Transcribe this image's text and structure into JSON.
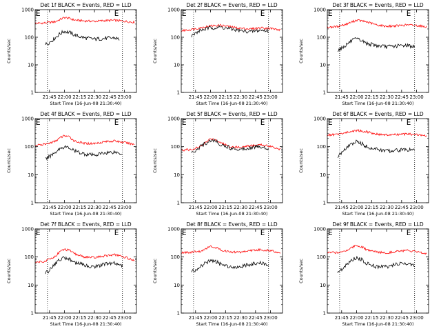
{
  "chart_data": [
    {
      "type": "line",
      "title": "Det 1f BLACK = Events, RED = LLD",
      "xlabel": "Start Time (16-Jun-08 21:30:40)",
      "ylabel": "Counts/sec",
      "yscale": "log",
      "ylim": [
        1,
        1000
      ],
      "yticks": [
        "1",
        "10",
        "100",
        "1000"
      ],
      "xticks": [
        "21:45",
        "22:00",
        "22:15",
        "22:30",
        "22:45",
        "23:00"
      ],
      "xlim": [
        "21:30:40",
        "23:12"
      ],
      "flags": [
        "E",
        "E"
      ],
      "markers": [
        "21:43",
        "22:58"
      ],
      "series": [
        {
          "color": "#ff0000",
          "x": [
            "21:30:40",
            "21:40",
            "21:50",
            "21:55",
            "22:00",
            "22:05",
            "22:10",
            "22:20",
            "22:30",
            "22:40",
            "22:50",
            "23:00",
            "23:10"
          ],
          "y": [
            320,
            330,
            360,
            430,
            520,
            480,
            420,
            390,
            380,
            400,
            410,
            380,
            350
          ]
        },
        {
          "color": "#000000",
          "x": [
            "21:41",
            "21:45",
            "21:50",
            "21:55",
            "22:00",
            "22:05",
            "22:10",
            "22:20",
            "22:30",
            "22:40",
            "22:50",
            "22:55"
          ],
          "y": [
            55,
            65,
            90,
            130,
            165,
            150,
            120,
            95,
            85,
            90,
            95,
            85
          ]
        }
      ]
    },
    {
      "type": "line",
      "title": "Det 2f BLACK = Events, RED = LLD",
      "xlabel": "Start Time (16-Jun-08 21:30:40)",
      "ylabel": "Counts/sec",
      "yscale": "log",
      "ylim": [
        1,
        1000
      ],
      "yticks": [
        "1",
        "10",
        "100",
        "1000"
      ],
      "xticks": [
        "21:45",
        "22:00",
        "22:15",
        "22:30",
        "22:45",
        "23:00"
      ],
      "xlim": [
        "21:30:40",
        "23:12"
      ],
      "flags": [
        "E",
        "E"
      ],
      "markers": [
        "21:43",
        "22:58"
      ],
      "series": [
        {
          "color": "#ff0000",
          "x": [
            "21:30:40",
            "21:40",
            "21:50",
            "22:00",
            "22:10",
            "22:20",
            "22:30",
            "22:40",
            "22:50",
            "23:00",
            "23:10"
          ],
          "y": [
            170,
            190,
            220,
            260,
            270,
            240,
            210,
            200,
            220,
            210,
            180
          ]
        },
        {
          "color": "#000000",
          "x": [
            "21:41",
            "21:45",
            "21:50",
            "22:00",
            "22:10",
            "22:20",
            "22:30",
            "22:40",
            "22:50",
            "22:58"
          ],
          "y": [
            110,
            140,
            180,
            220,
            230,
            200,
            170,
            160,
            180,
            170
          ]
        }
      ]
    },
    {
      "type": "line",
      "title": "Det 3f BLACK = Events, RED = LLD",
      "xlabel": "Start Time (16-Jun-08 21:30:40)",
      "ylabel": "Counts/sec",
      "yscale": "log",
      "ylim": [
        1,
        1000
      ],
      "yticks": [
        "1",
        "10",
        "100",
        "1000"
      ],
      "xticks": [
        "21:45",
        "22:00",
        "22:15",
        "22:30",
        "22:45",
        "23:00"
      ],
      "xlim": [
        "21:30:40",
        "23:12"
      ],
      "flags": [
        "E",
        "E"
      ],
      "markers": [
        "21:43",
        "22:58"
      ],
      "series": [
        {
          "color": "#ff0000",
          "x": [
            "21:30:40",
            "21:40",
            "21:50",
            "22:00",
            "22:10",
            "22:20",
            "22:30",
            "22:40",
            "22:50",
            "23:00",
            "23:10"
          ],
          "y": [
            230,
            240,
            300,
            420,
            360,
            280,
            250,
            260,
            280,
            270,
            240
          ]
        },
        {
          "color": "#000000",
          "x": [
            "21:41",
            "21:45",
            "21:50",
            "21:55",
            "22:00",
            "22:05",
            "22:10",
            "22:20",
            "22:30",
            "22:40",
            "22:50",
            "22:58"
          ],
          "y": [
            35,
            40,
            55,
            75,
            85,
            75,
            60,
            50,
            45,
            48,
            52,
            45
          ]
        }
      ]
    },
    {
      "type": "line",
      "title": "Det 4f BLACK = Events, RED = LLD",
      "xlabel": "Start Time (16-Jun-08 21:30:40)",
      "ylabel": "Counts/sec",
      "yscale": "log",
      "ylim": [
        1,
        1000
      ],
      "yticks": [
        "1",
        "10",
        "100",
        "1000"
      ],
      "xticks": [
        "21:45",
        "22:00",
        "22:15",
        "22:30",
        "22:45",
        "23:00"
      ],
      "xlim": [
        "21:30:40",
        "23:12"
      ],
      "flags": [
        "E",
        "E"
      ],
      "markers": [
        "21:43",
        "22:58"
      ],
      "series": [
        {
          "color": "#ff0000",
          "x": [
            "21:30:40",
            "21:40",
            "21:50",
            "21:55",
            "22:00",
            "22:05",
            "22:10",
            "22:20",
            "22:30",
            "22:40",
            "22:50",
            "23:00",
            "23:10"
          ],
          "y": [
            110,
            120,
            150,
            200,
            250,
            220,
            160,
            130,
            130,
            150,
            160,
            140,
            120
          ]
        },
        {
          "color": "#000000",
          "x": [
            "21:41",
            "21:45",
            "21:50",
            "21:55",
            "22:00",
            "22:05",
            "22:10",
            "22:20",
            "22:30",
            "22:40",
            "22:50",
            "22:58"
          ],
          "y": [
            35,
            45,
            60,
            85,
            100,
            90,
            70,
            55,
            50,
            60,
            65,
            55
          ]
        }
      ]
    },
    {
      "type": "line",
      "title": "Det 5f BLACK = Events, RED = LLD",
      "xlabel": "Start Time (16-Jun-08 21:30:40)",
      "ylabel": "Counts/sec",
      "yscale": "log",
      "ylim": [
        1,
        1000
      ],
      "yticks": [
        "1",
        "10",
        "100",
        "1000"
      ],
      "xticks": [
        "21:45",
        "22:00",
        "22:15",
        "22:30",
        "22:45",
        "23:00"
      ],
      "xlim": [
        "21:30:40",
        "23:12"
      ],
      "flags": [
        "E",
        "E"
      ],
      "markers": [
        "21:43",
        "22:58"
      ],
      "series": [
        {
          "color": "#ff0000",
          "x": [
            "21:30:40",
            "21:40",
            "21:50",
            "21:55",
            "22:00",
            "22:05",
            "22:10",
            "22:20",
            "22:30",
            "22:40",
            "22:50",
            "23:00",
            "23:10"
          ],
          "y": [
            75,
            78,
            100,
            140,
            190,
            180,
            140,
            100,
            95,
            110,
            115,
            105,
            80
          ]
        },
        {
          "color": "#000000",
          "x": [
            "21:41",
            "21:45",
            "21:50",
            "21:55",
            "22:00",
            "22:05",
            "22:10",
            "22:20",
            "22:30",
            "22:40",
            "22:50",
            "22:58"
          ],
          "y": [
            60,
            75,
            100,
            130,
            170,
            160,
            120,
            90,
            80,
            95,
            100,
            85
          ]
        }
      ]
    },
    {
      "type": "line",
      "title": "Det 6f BLACK = Events, RED = LLD",
      "xlabel": "Start Time (16-Jun-08 21:30:40)",
      "ylabel": "Counts/sec",
      "yscale": "log",
      "ylim": [
        1,
        1000
      ],
      "yticks": [
        "1",
        "10",
        "100",
        "1000"
      ],
      "xticks": [
        "21:45",
        "22:00",
        "22:15",
        "22:30",
        "22:45",
        "23:00"
      ],
      "xlim": [
        "21:30:40",
        "23:12"
      ],
      "flags": [
        "E",
        "E"
      ],
      "markers": [
        "21:43",
        "22:58"
      ],
      "series": [
        {
          "color": "#ff0000",
          "x": [
            "21:30:40",
            "21:40",
            "21:50",
            "22:00",
            "22:10",
            "22:20",
            "22:30",
            "22:40",
            "22:50",
            "23:00",
            "23:10"
          ],
          "y": [
            260,
            270,
            320,
            380,
            340,
            280,
            260,
            270,
            280,
            270,
            240
          ]
        },
        {
          "color": "#000000",
          "x": [
            "21:41",
            "21:45",
            "21:50",
            "21:55",
            "22:00",
            "22:05",
            "22:10",
            "22:20",
            "22:30",
            "22:40",
            "22:50",
            "22:58"
          ],
          "y": [
            45,
            60,
            90,
            125,
            150,
            130,
            100,
            80,
            70,
            75,
            80,
            70
          ]
        }
      ]
    },
    {
      "type": "line",
      "title": "Det 7f BLACK = Events, RED = LLD",
      "xlabel": "Start Time (16-Jun-08 21:30:40)",
      "ylabel": "Counts/sec",
      "yscale": "log",
      "ylim": [
        1,
        1000
      ],
      "yticks": [
        "1",
        "10",
        "100",
        "1000"
      ],
      "xticks": [
        "21:45",
        "22:00",
        "22:15",
        "22:30",
        "22:45",
        "23:00"
      ],
      "xlim": [
        "21:30:40",
        "23:12"
      ],
      "flags": [
        "E",
        "E"
      ],
      "markers": [
        "21:43",
        "22:58"
      ],
      "series": [
        {
          "color": "#ff0000",
          "x": [
            "21:30:40",
            "21:40",
            "21:50",
            "21:55",
            "22:00",
            "22:05",
            "22:10",
            "22:20",
            "22:30",
            "22:40",
            "22:50",
            "23:00",
            "23:10"
          ],
          "y": [
            65,
            70,
            100,
            150,
            190,
            170,
            130,
            100,
            95,
            110,
            120,
            100,
            75
          ]
        },
        {
          "color": "#000000",
          "x": [
            "21:41",
            "21:45",
            "21:50",
            "21:55",
            "22:00",
            "22:05",
            "22:10",
            "22:20",
            "22:30",
            "22:40",
            "22:50",
            "22:58"
          ],
          "y": [
            25,
            35,
            55,
            80,
            95,
            85,
            65,
            50,
            45,
            55,
            60,
            50
          ]
        }
      ]
    },
    {
      "type": "line",
      "title": "Det 8f BLACK = Events, RED = LLD",
      "xlabel": "Start Time (16-Jun-08 21:30:40)",
      "ylabel": "Counts/sec",
      "yscale": "log",
      "ylim": [
        1,
        1000
      ],
      "yticks": [
        "1",
        "10",
        "100",
        "1000"
      ],
      "xticks": [
        "21:45",
        "22:00",
        "22:15",
        "22:30",
        "22:45",
        "23:00"
      ],
      "xlim": [
        "21:30:40",
        "23:12"
      ],
      "flags": [
        "E",
        "E"
      ],
      "markers": [
        "21:43",
        "22:58"
      ],
      "series": [
        {
          "color": "#ff0000",
          "x": [
            "21:30:40",
            "21:40",
            "21:50",
            "21:55",
            "22:00",
            "22:05",
            "22:10",
            "22:20",
            "22:30",
            "22:40",
            "22:50",
            "23:00",
            "23:10"
          ],
          "y": [
            140,
            145,
            160,
            200,
            240,
            220,
            180,
            150,
            150,
            170,
            180,
            170,
            140
          ]
        },
        {
          "color": "#000000",
          "x": [
            "21:41",
            "21:45",
            "21:50",
            "21:55",
            "22:00",
            "22:05",
            "22:10",
            "22:20",
            "22:30",
            "22:40",
            "22:50",
            "22:58"
          ],
          "y": [
            30,
            35,
            45,
            60,
            75,
            70,
            55,
            45,
            45,
            55,
            60,
            55
          ]
        }
      ]
    },
    {
      "type": "line",
      "title": "Det 9f BLACK = Events, RED = LLD",
      "xlabel": "Start Time (16-Jun-08 21:30:40)",
      "ylabel": "Counts/sec",
      "yscale": "log",
      "ylim": [
        1,
        1000
      ],
      "yticks": [
        "1",
        "10",
        "100",
        "1000"
      ],
      "xticks": [
        "21:45",
        "22:00",
        "22:15",
        "22:30",
        "22:45",
        "23:00"
      ],
      "xlim": [
        "21:30:40",
        "23:12"
      ],
      "flags": [
        "E",
        "E"
      ],
      "markers": [
        "21:43",
        "22:58"
      ],
      "series": [
        {
          "color": "#ff0000",
          "x": [
            "21:30:40",
            "21:40",
            "21:50",
            "21:55",
            "22:00",
            "22:05",
            "22:10",
            "22:20",
            "22:30",
            "22:40",
            "22:50",
            "23:00",
            "23:10"
          ],
          "y": [
            140,
            145,
            170,
            220,
            260,
            230,
            180,
            150,
            140,
            160,
            170,
            150,
            130
          ]
        },
        {
          "color": "#000000",
          "x": [
            "21:41",
            "21:45",
            "21:50",
            "21:55",
            "22:00",
            "22:05",
            "22:10",
            "22:20",
            "22:30",
            "22:40",
            "22:50",
            "22:58"
          ],
          "y": [
            25,
            35,
            55,
            80,
            95,
            80,
            60,
            45,
            45,
            55,
            60,
            50
          ]
        }
      ]
    }
  ]
}
